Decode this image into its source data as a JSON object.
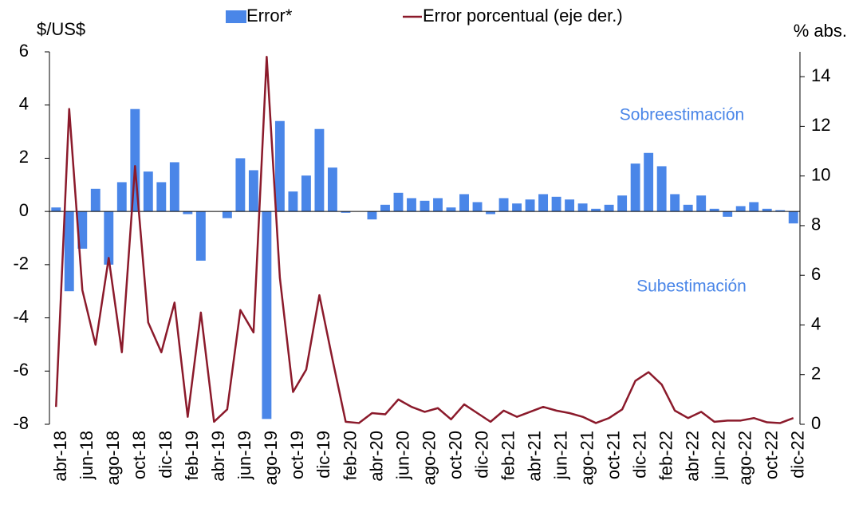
{
  "chart_data": {
    "type": "bar-line",
    "y_label": "$/US$",
    "y2_label": "% abs.",
    "annotations": [
      "Sobreestimación",
      "Subestimación"
    ],
    "categories": [
      "abr-18",
      null,
      "jun-18",
      null,
      "ago-18",
      null,
      "oct-18",
      null,
      "dic-18",
      null,
      "feb-19",
      null,
      "abr-19",
      null,
      "jun-19",
      null,
      "ago-19",
      null,
      "oct-19",
      null,
      "dic-19",
      null,
      "feb-20",
      null,
      "abr-20",
      null,
      "jun-20",
      null,
      "ago-20",
      null,
      "oct-20",
      null,
      "dic-20",
      null,
      "feb-21",
      null,
      "abr-21",
      null,
      "jun-21",
      null,
      "ago-21",
      null,
      "oct-21",
      null,
      "dic-21",
      null,
      "feb-22",
      null,
      "abr-22",
      null,
      "jun-22",
      null,
      "ago-22",
      null,
      "oct-22",
      null,
      "dic-22"
    ],
    "series": [
      {
        "name": "Error*",
        "type": "bar",
        "axis": "y",
        "color": "#4a86e8",
        "values": [
          0.15,
          -3.0,
          -1.4,
          0.85,
          -2.0,
          1.1,
          3.85,
          1.5,
          1.1,
          1.85,
          -0.1,
          -1.85,
          0,
          -0.25,
          2.0,
          1.55,
          -7.8,
          3.4,
          0.75,
          1.35,
          3.1,
          1.65,
          -0.05,
          0,
          -0.3,
          0.25,
          0.7,
          0.5,
          0.4,
          0.5,
          0.15,
          0.65,
          0.35,
          -0.1,
          0.5,
          0.3,
          0.45,
          0.65,
          0.55,
          0.45,
          0.3,
          0.1,
          0.25,
          0.6,
          1.8,
          2.2,
          1.7,
          0.65,
          0.25,
          0.6,
          0.1,
          -0.2,
          0.2,
          0.35,
          0.1,
          0.05,
          -0.45
        ]
      },
      {
        "name": "Error porcentual (eje der.)",
        "type": "line",
        "axis": "y2",
        "color": "#8b1a2b",
        "values": [
          0.7,
          12.7,
          5.4,
          3.2,
          6.7,
          2.9,
          10.4,
          4.1,
          2.9,
          4.9,
          0.3,
          4.5,
          0.1,
          0.6,
          4.6,
          3.7,
          14.8,
          5.9,
          1.3,
          2.2,
          5.2,
          2.6,
          0.1,
          0.05,
          0.45,
          0.4,
          1.0,
          0.7,
          0.5,
          0.65,
          0.2,
          0.8,
          0.45,
          0.1,
          0.55,
          0.3,
          0.5,
          0.7,
          0.55,
          0.45,
          0.3,
          0.05,
          0.25,
          0.6,
          1.75,
          2.1,
          1.6,
          0.55,
          0.25,
          0.5,
          0.1,
          0.15,
          0.15,
          0.25,
          0.08,
          0.05,
          0.25
        ]
      }
    ],
    "ylim": [
      -8,
      6
    ],
    "yticks": [
      -8,
      -6,
      -4,
      -2,
      0,
      2,
      4,
      6
    ],
    "y2lim": [
      0,
      15
    ],
    "y2ticks": [
      0,
      2,
      4,
      6,
      8,
      10,
      12,
      14
    ],
    "legend": "top"
  }
}
